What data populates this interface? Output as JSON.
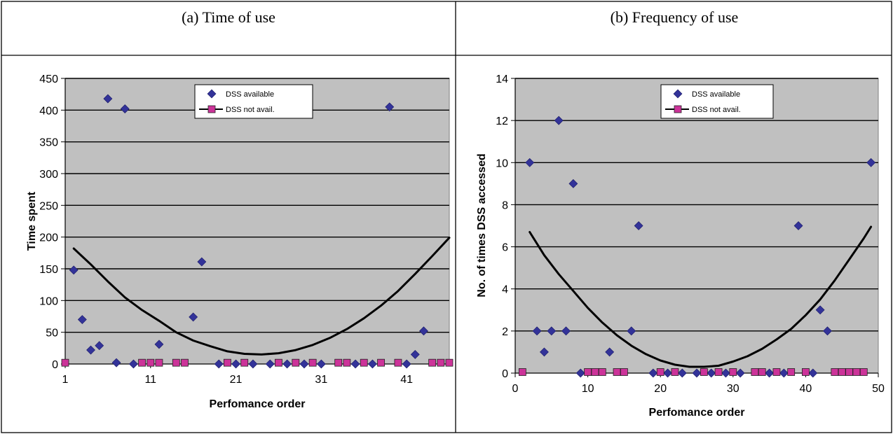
{
  "panels": [
    {
      "caption": "(a) Time of use"
    },
    {
      "caption": "(b) Frequency of use"
    }
  ],
  "colors": {
    "plot_bg": "#c0c0c0",
    "available": "#333399",
    "not_available": "#cc3399",
    "trend": "#000000"
  },
  "chart_data": [
    {
      "type": "scatter",
      "title": "",
      "xlabel": "Perfomance order",
      "ylabel": "Time spent",
      "xlim": [
        1,
        46
      ],
      "ylim": [
        0,
        450
      ],
      "xticks": [
        1,
        11,
        21,
        31,
        41
      ],
      "yticks": [
        0,
        50,
        100,
        150,
        200,
        250,
        300,
        350,
        400,
        450
      ],
      "grid": true,
      "legend": "top-center",
      "series": [
        {
          "name": "DSS available",
          "marker": "diamond",
          "points": [
            [
              2,
              148
            ],
            [
              3,
              70
            ],
            [
              4,
              22
            ],
            [
              5,
              29
            ],
            [
              6,
              418
            ],
            [
              7,
              2
            ],
            [
              8,
              402
            ],
            [
              9,
              0
            ],
            [
              12,
              31
            ],
            [
              16,
              74
            ],
            [
              17,
              161
            ],
            [
              19,
              0
            ],
            [
              21,
              0
            ],
            [
              23,
              0
            ],
            [
              25,
              0
            ],
            [
              27,
              0
            ],
            [
              29,
              0
            ],
            [
              31,
              0
            ],
            [
              35,
              0
            ],
            [
              37,
              0
            ],
            [
              39,
              405
            ],
            [
              41,
              0
            ],
            [
              42,
              15
            ],
            [
              43,
              52
            ]
          ]
        },
        {
          "name": "DSS not avail.",
          "marker": "square",
          "points": [
            [
              1,
              2
            ],
            [
              10,
              2
            ],
            [
              11,
              2
            ],
            [
              12,
              2
            ],
            [
              14,
              2
            ],
            [
              15,
              2
            ],
            [
              20,
              2
            ],
            [
              22,
              2
            ],
            [
              26,
              2
            ],
            [
              28,
              2
            ],
            [
              30,
              2
            ],
            [
              33,
              2
            ],
            [
              34,
              2
            ],
            [
              36,
              2
            ],
            [
              38,
              2
            ],
            [
              40,
              2
            ],
            [
              44,
              2
            ],
            [
              45,
              2
            ],
            [
              46,
              2
            ]
          ]
        }
      ],
      "trendline": {
        "type": "polynomial",
        "points": [
          [
            2,
            182
          ],
          [
            4,
            157
          ],
          [
            6,
            130
          ],
          [
            8,
            105
          ],
          [
            10,
            85
          ],
          [
            12,
            68
          ],
          [
            14,
            50
          ],
          [
            16,
            37
          ],
          [
            18,
            28
          ],
          [
            20,
            20
          ],
          [
            22,
            16
          ],
          [
            24,
            15
          ],
          [
            26,
            17
          ],
          [
            28,
            22
          ],
          [
            30,
            30
          ],
          [
            32,
            41
          ],
          [
            34,
            55
          ],
          [
            36,
            72
          ],
          [
            38,
            92
          ],
          [
            40,
            115
          ],
          [
            42,
            142
          ],
          [
            44,
            170
          ],
          [
            46,
            199
          ]
        ]
      }
    },
    {
      "type": "scatter",
      "title": "",
      "xlabel": "Perfomance order",
      "ylabel": "No. of times DSS accessed",
      "xlim": [
        0,
        50
      ],
      "ylim": [
        0,
        14
      ],
      "xticks": [
        0,
        10,
        20,
        30,
        40,
        50
      ],
      "yticks": [
        0,
        2,
        4,
        6,
        8,
        10,
        12,
        14
      ],
      "grid": true,
      "legend": "top-center",
      "series": [
        {
          "name": "DSS available",
          "marker": "diamond",
          "points": [
            [
              2,
              10
            ],
            [
              3,
              2
            ],
            [
              4,
              1
            ],
            [
              5,
              2
            ],
            [
              6,
              12
            ],
            [
              7,
              2
            ],
            [
              8,
              9
            ],
            [
              9,
              0
            ],
            [
              13,
              1
            ],
            [
              16,
              2
            ],
            [
              17,
              7
            ],
            [
              19,
              0
            ],
            [
              21,
              0
            ],
            [
              23,
              0
            ],
            [
              25,
              0
            ],
            [
              27,
              0
            ],
            [
              29,
              0
            ],
            [
              31,
              0
            ],
            [
              35,
              0
            ],
            [
              37,
              0
            ],
            [
              39,
              7
            ],
            [
              41,
              0
            ],
            [
              42,
              3
            ],
            [
              43,
              2
            ],
            [
              49,
              10
            ]
          ]
        },
        {
          "name": "DSS not avail.",
          "marker": "square",
          "points": [
            [
              1,
              0.05
            ],
            [
              10,
              0.05
            ],
            [
              11,
              0.05
            ],
            [
              12,
              0.05
            ],
            [
              14,
              0.05
            ],
            [
              15,
              0.05
            ],
            [
              20,
              0.05
            ],
            [
              22,
              0.05
            ],
            [
              26,
              0.05
            ],
            [
              28,
              0.05
            ],
            [
              30,
              0.05
            ],
            [
              33,
              0.05
            ],
            [
              34,
              0.05
            ],
            [
              36,
              0.05
            ],
            [
              38,
              0.05
            ],
            [
              40,
              0.05
            ],
            [
              44,
              0.05
            ],
            [
              45,
              0.05
            ],
            [
              46,
              0.05
            ],
            [
              47,
              0.05
            ],
            [
              48,
              0.05
            ]
          ]
        }
      ],
      "trendline": {
        "type": "polynomial",
        "points": [
          [
            2,
            6.7
          ],
          [
            4,
            5.6
          ],
          [
            6,
            4.7
          ],
          [
            8,
            3.9
          ],
          [
            10,
            3.1
          ],
          [
            12,
            2.4
          ],
          [
            14,
            1.8
          ],
          [
            16,
            1.3
          ],
          [
            18,
            0.9
          ],
          [
            20,
            0.6
          ],
          [
            22,
            0.4
          ],
          [
            24,
            0.3
          ],
          [
            26,
            0.3
          ],
          [
            28,
            0.35
          ],
          [
            30,
            0.55
          ],
          [
            32,
            0.8
          ],
          [
            34,
            1.15
          ],
          [
            36,
            1.6
          ],
          [
            38,
            2.1
          ],
          [
            40,
            2.75
          ],
          [
            42,
            3.5
          ],
          [
            44,
            4.4
          ],
          [
            46,
            5.4
          ],
          [
            48,
            6.4
          ],
          [
            49,
            6.95
          ]
        ]
      }
    }
  ]
}
